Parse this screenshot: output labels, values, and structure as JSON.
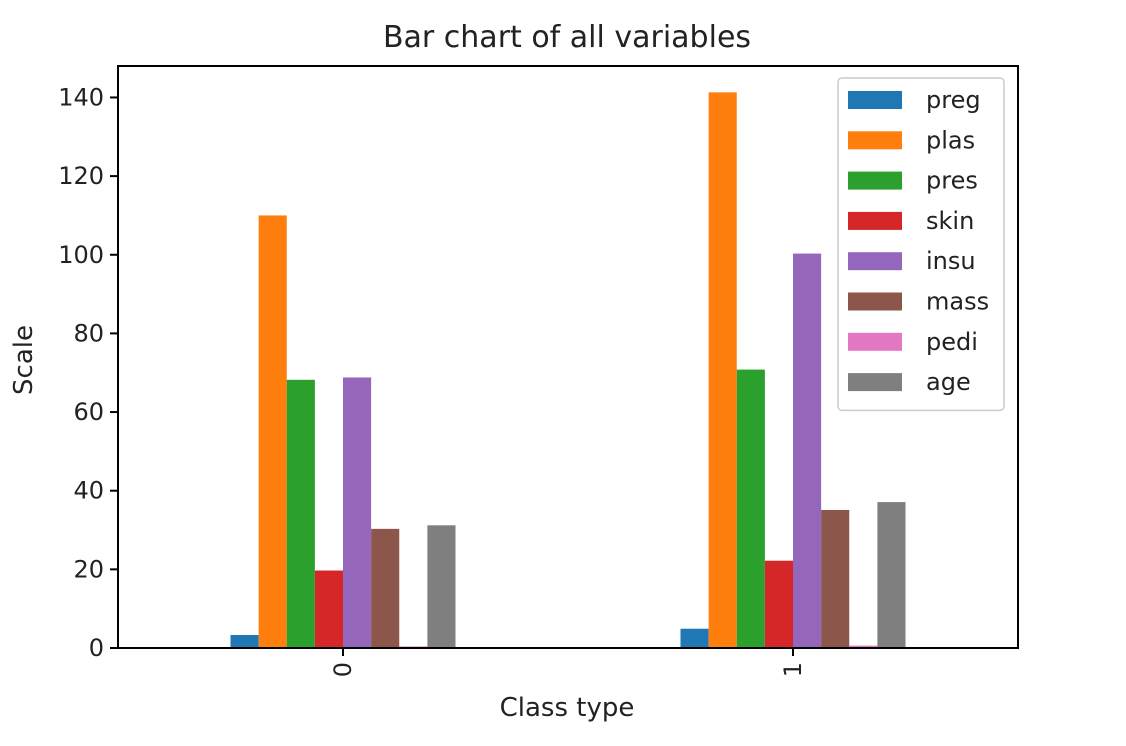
{
  "chart_data": {
    "type": "bar",
    "title": "Bar chart of all variables",
    "xlabel": "Class type",
    "ylabel": "Scale",
    "categories": [
      "0",
      "1"
    ],
    "ylim": [
      0,
      148
    ],
    "yticks": [
      0,
      20,
      40,
      60,
      80,
      100,
      120,
      140
    ],
    "grid": false,
    "legend_position": "top-right",
    "series": [
      {
        "name": "preg",
        "color": "#1f77b4",
        "values": [
          3.3,
          4.9
        ]
      },
      {
        "name": "plas",
        "color": "#ff7f0e",
        "values": [
          110.0,
          141.3
        ]
      },
      {
        "name": "pres",
        "color": "#2ca02c",
        "values": [
          68.2,
          70.8
        ]
      },
      {
        "name": "skin",
        "color": "#d62728",
        "values": [
          19.7,
          22.2
        ]
      },
      {
        "name": "insu",
        "color": "#9467bd",
        "values": [
          68.8,
          100.3
        ]
      },
      {
        "name": "mass",
        "color": "#8c564b",
        "values": [
          30.3,
          35.1
        ]
      },
      {
        "name": "pedi",
        "color": "#e377c2",
        "values": [
          0.4,
          0.6
        ]
      },
      {
        "name": "age",
        "color": "#7f7f7f",
        "values": [
          31.2,
          37.1
        ]
      }
    ]
  }
}
